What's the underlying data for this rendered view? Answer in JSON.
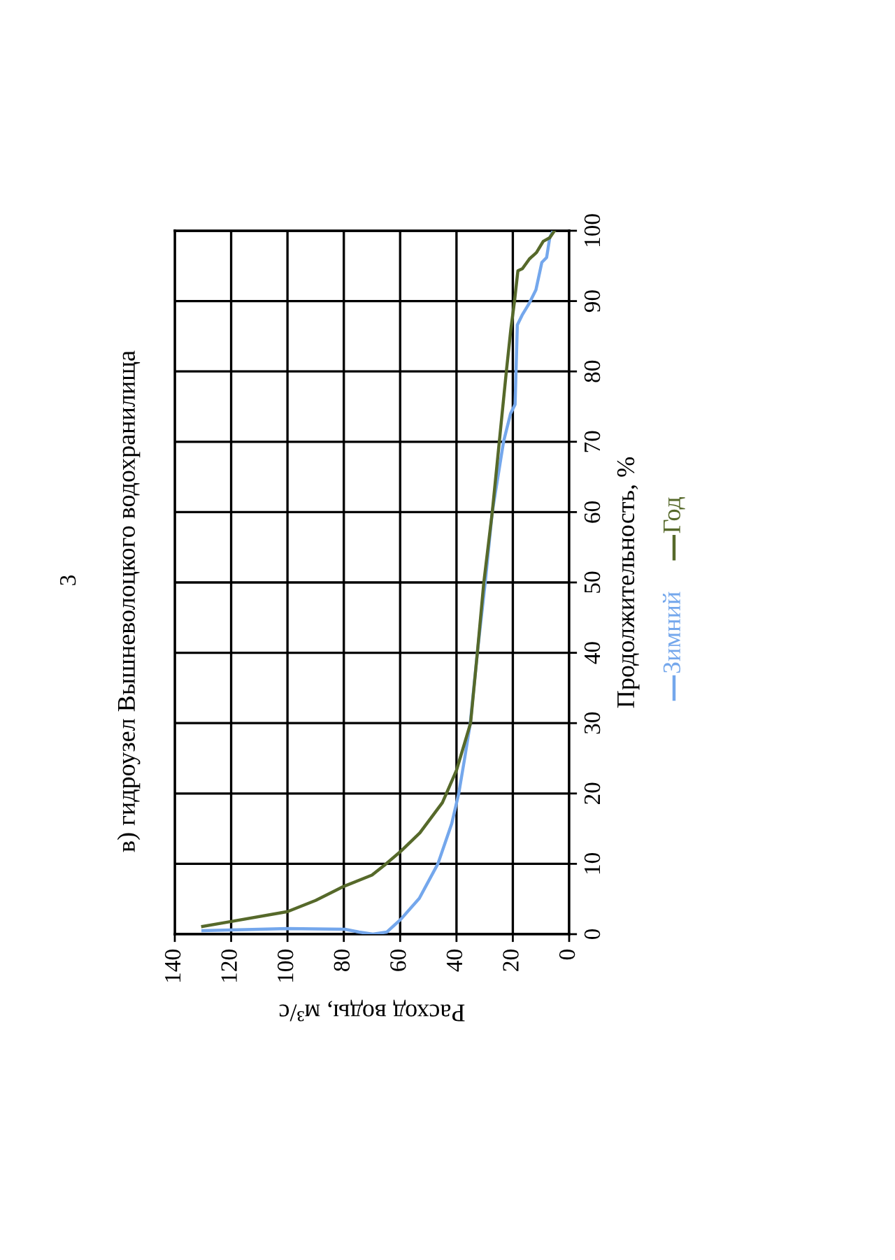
{
  "chart_data": {
    "type": "line",
    "title": "в) гидроузел Вышневолоцкого водохранилища",
    "annotations": [
      "3"
    ],
    "xlabel": "Расход воды, м³/с",
    "ylabel": "Продолжительность, %",
    "xlim": [
      140,
      0
    ],
    "xticks": [
      0,
      20,
      40,
      60,
      80,
      100,
      120,
      140
    ],
    "ylim": [
      0,
      100
    ],
    "yticks": [
      0,
      10,
      20,
      30,
      40,
      50,
      60,
      70,
      80,
      90,
      100
    ],
    "grid": true,
    "legend": "right",
    "marker": "none",
    "line_style": "solid",
    "series": [
      {
        "name": "Зимний",
        "color": "#74a7ec",
        "values": [
          0.5,
          0.8,
          0.7,
          0.3,
          0,
          0.3,
          2.1,
          5.1,
          10,
          15.7,
          20,
          25,
          30,
          40,
          50,
          60,
          70,
          74,
          75.3,
          86.6,
          88,
          89.6,
          91.6,
          95.5,
          96.2,
          99,
          100
        ],
        "x": [
          130,
          100,
          79.6,
          74.6,
          69.7,
          64.7,
          59.8,
          53.2,
          46.6,
          41.7,
          39.2,
          37.1,
          35.1,
          32.6,
          29.8,
          27.3,
          23.3,
          20.8,
          19.2,
          18.4,
          16.7,
          14.3,
          11.8,
          9.7,
          8,
          6.9,
          5.7
        ]
      },
      {
        "name": "Год",
        "color": "#56692a",
        "values": [
          1.1,
          1.8,
          3.2,
          4.8,
          6.8,
          8.4,
          10,
          11.7,
          14.4,
          18.7,
          23.3,
          30,
          40,
          50,
          60,
          70,
          80,
          86,
          90,
          94.3,
          94.6,
          96,
          96.9,
          98.5,
          99,
          100
        ],
        "x": [
          130.1,
          120,
          100,
          90,
          80,
          70,
          65,
          60,
          53,
          45,
          40,
          35,
          32.6,
          30.3,
          27.3,
          24.8,
          22.3,
          20.7,
          19.4,
          18.2,
          16.6,
          14.1,
          11.6,
          9.2,
          6.9,
          5.2
        ]
      }
    ]
  }
}
